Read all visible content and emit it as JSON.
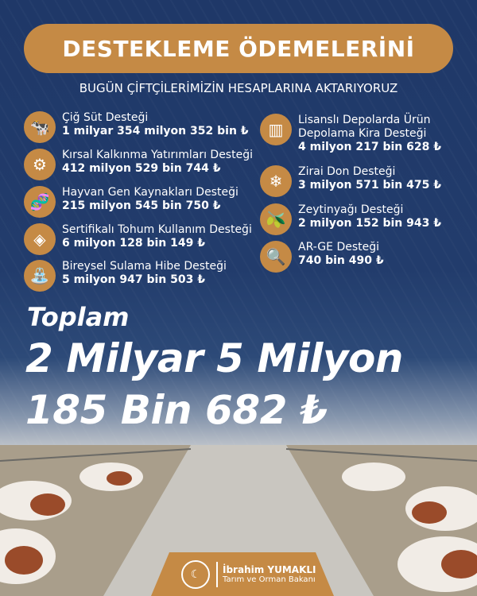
{
  "header": {
    "title": "DESTEKLEME ÖDEMELERİNİ",
    "subtitle": "BUGÜN ÇİFTÇİLERİMİZİN HESAPLARINA AKTARIYORUZ"
  },
  "colors": {
    "accent": "#c58a45",
    "background": "#1f3868"
  },
  "left_items": [
    {
      "icon": "milk-cow-icon",
      "label": "Çiğ Süt Desteği",
      "amount": "1 milyar 354 milyon 352 bin ₺"
    },
    {
      "icon": "gear-plant-icon",
      "label": "Kırsal Kalkınma Yatırımları Desteği",
      "amount": "412 milyon 529 bin 744 ₺"
    },
    {
      "icon": "dna-cow-icon",
      "label": "Hayvan Gen Kaynakları Desteği",
      "amount": "215 milyon 545 bin 750 ₺"
    },
    {
      "icon": "seed-bag-icon",
      "label": "Sertifikalı Tohum Kullanım Desteği",
      "amount": "6 milyon 128 bin 149 ₺"
    },
    {
      "icon": "irrigation-icon",
      "label": "Bireysel Sulama Hibe Desteği",
      "amount": "5 milyon 947 bin 503 ₺"
    }
  ],
  "right_items": [
    {
      "icon": "silo-icon",
      "label": "Lisanslı Depolarda Ürün",
      "label2": "Depolama Kira Desteği",
      "amount": "4 milyon 217 bin 628 ₺"
    },
    {
      "icon": "snowflake-icon",
      "label": "Zirai Don Desteği",
      "amount": "3 milyon 571 bin 475 ₺"
    },
    {
      "icon": "olive-oil-icon",
      "label": "Zeytinyağı Desteği",
      "amount": "2 milyon 152 bin 943 ₺"
    },
    {
      "icon": "magnifier-icon",
      "label": "AR-GE Desteği",
      "amount": "740 bin 490 ₺"
    }
  ],
  "total": {
    "label": "Toplam",
    "line1": "2 Milyar 5 Milyon",
    "line2": "185 Bin 682 ₺"
  },
  "footer": {
    "name": "İbrahim YUMAKLI",
    "role": "Tarım ve Orman Bakanı"
  }
}
